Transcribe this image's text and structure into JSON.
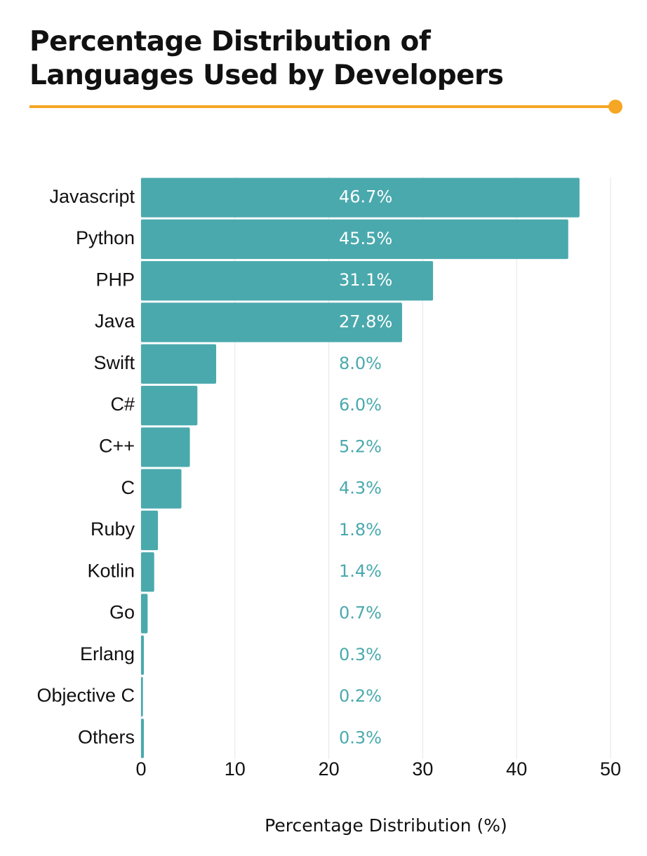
{
  "chart_data": {
    "type": "bar",
    "orientation": "horizontal",
    "title": "Percentage Distribution of Languages Used by Developers",
    "x_label": "Percentage Distribution (%)",
    "categories": [
      "Javascript",
      "Python",
      "PHP",
      "Java",
      "Swift",
      "C#",
      "C++",
      "C",
      "Ruby",
      "Kotlin",
      "Go",
      "Erlang",
      "Objective C",
      "Others"
    ],
    "values": [
      46.7,
      45.5,
      31.1,
      27.8,
      8,
      6,
      5.2,
      4.3,
      1.8,
      1.4,
      0.7,
      0.3,
      0.2,
      0.3
    ],
    "value_labels": [
      "46.7%",
      "45.5%",
      "31.1%",
      "27.8%",
      "8.0%",
      "6.0%",
      "5.2%",
      "4.3%",
      "1.8%",
      "1.4%",
      "0.7%",
      "0.3%",
      "0.2%",
      "0.3%"
    ],
    "color": "#4aa9ad",
    "xlim": [
      0,
      50
    ],
    "xticks": [
      0,
      10,
      20,
      30,
      40,
      50
    ],
    "grid": true
  }
}
